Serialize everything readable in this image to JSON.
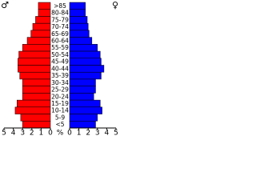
{
  "chart_data": {
    "type": "pyramid",
    "categories": [
      ">85",
      "80-84",
      "75-79",
      "70-74",
      "65-69",
      "60-64",
      "55-59",
      "50-54",
      "45-49",
      "40-44",
      "35-39",
      "30-34",
      "25-29",
      "20-24",
      "15-19",
      "10-14",
      "5-9",
      "<5"
    ],
    "series": [
      {
        "name": "♂",
        "color": "#ff0000",
        "values": [
          1.3,
          1.3,
          1.6,
          1.9,
          2.1,
          2.5,
          3.0,
          3.4,
          3.5,
          3.5,
          3.3,
          3.0,
          3.0,
          3.0,
          3.6,
          3.8,
          3.2,
          3.0
        ]
      },
      {
        "name": "♀",
        "color": "#0000ff",
        "values": [
          1.7,
          1.7,
          1.9,
          2.0,
          2.1,
          2.4,
          3.0,
          3.3,
          3.4,
          3.7,
          3.4,
          2.8,
          2.8,
          2.6,
          3.3,
          3.5,
          3.0,
          2.8
        ]
      }
    ],
    "x_label": "%",
    "xlim": [
      0,
      5
    ],
    "xticks": [
      0,
      1,
      2,
      3,
      4,
      5
    ]
  }
}
